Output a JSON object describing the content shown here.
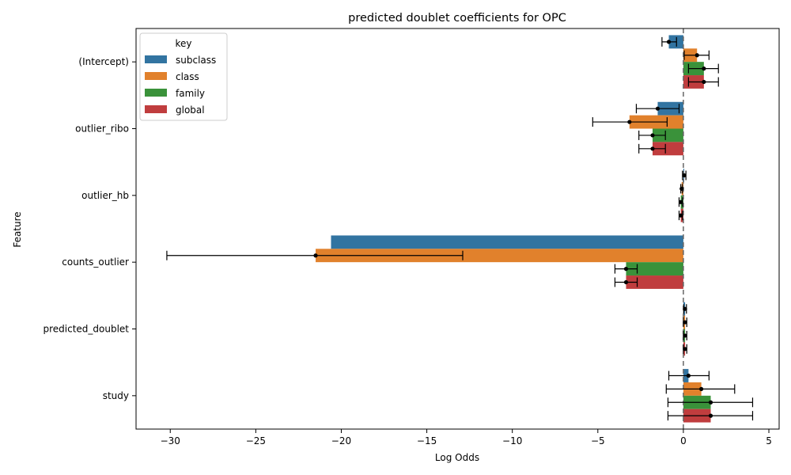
{
  "chart_data": {
    "type": "bar",
    "orientation": "horizontal",
    "title": "predicted doublet coefficients for OPC",
    "xlabel": "Log Odds",
    "ylabel": "Feature",
    "xlim": [
      -32,
      5.6
    ],
    "xticks": [
      -30,
      -25,
      -20,
      -15,
      -10,
      -5,
      0,
      5
    ],
    "reference_line": 0,
    "grid": false,
    "legend": {
      "title": "key",
      "placement": "top-left"
    },
    "categories": [
      "(Intercept)",
      "outlier_ribo",
      "outlier_hb",
      "counts_outlier",
      "predicted_doublet",
      "study"
    ],
    "series": [
      {
        "name": "subclass",
        "color": "#3274a1",
        "values": [
          -0.85,
          -1.5,
          0.05,
          -20.6,
          0.1,
          0.3
        ],
        "err_low": [
          -1.25,
          -2.75,
          -0.05,
          null,
          0.02,
          -0.85
        ],
        "err_high": [
          -0.4,
          -0.25,
          0.15,
          null,
          0.18,
          1.5
        ],
        "point": [
          -0.85,
          -1.5,
          0.05,
          null,
          0.1,
          0.3
        ]
      },
      {
        "name": "class",
        "color": "#e1812c",
        "values": [
          0.8,
          -3.15,
          -0.1,
          -21.5,
          0.1,
          1.05
        ],
        "err_low": [
          0.05,
          -5.3,
          -0.15,
          -30.2,
          0.0,
          -1.0
        ],
        "err_high": [
          1.5,
          -0.95,
          -0.05,
          -12.9,
          0.2,
          3.0
        ],
        "point": [
          0.8,
          -3.15,
          -0.1,
          -21.5,
          0.1,
          1.05
        ]
      },
      {
        "name": "family",
        "color": "#3a923a",
        "values": [
          1.2,
          -1.8,
          -0.15,
          -3.35,
          0.1,
          1.6
        ],
        "err_low": [
          0.3,
          -2.6,
          -0.25,
          -4.0,
          0.0,
          -0.9
        ],
        "err_high": [
          2.05,
          -1.05,
          -0.05,
          -2.7,
          0.2,
          4.05
        ],
        "point": [
          1.2,
          -1.8,
          -0.15,
          -3.35,
          0.1,
          1.6
        ]
      },
      {
        "name": "global",
        "color": "#c03d3e",
        "values": [
          1.2,
          -1.8,
          -0.15,
          -3.35,
          0.1,
          1.6
        ],
        "err_low": [
          0.3,
          -2.6,
          -0.25,
          -4.0,
          0.0,
          -0.9
        ],
        "err_high": [
          2.05,
          -1.05,
          -0.05,
          -2.7,
          0.2,
          4.05
        ],
        "point": [
          1.2,
          -1.8,
          -0.15,
          -3.35,
          0.1,
          1.6
        ]
      }
    ]
  }
}
